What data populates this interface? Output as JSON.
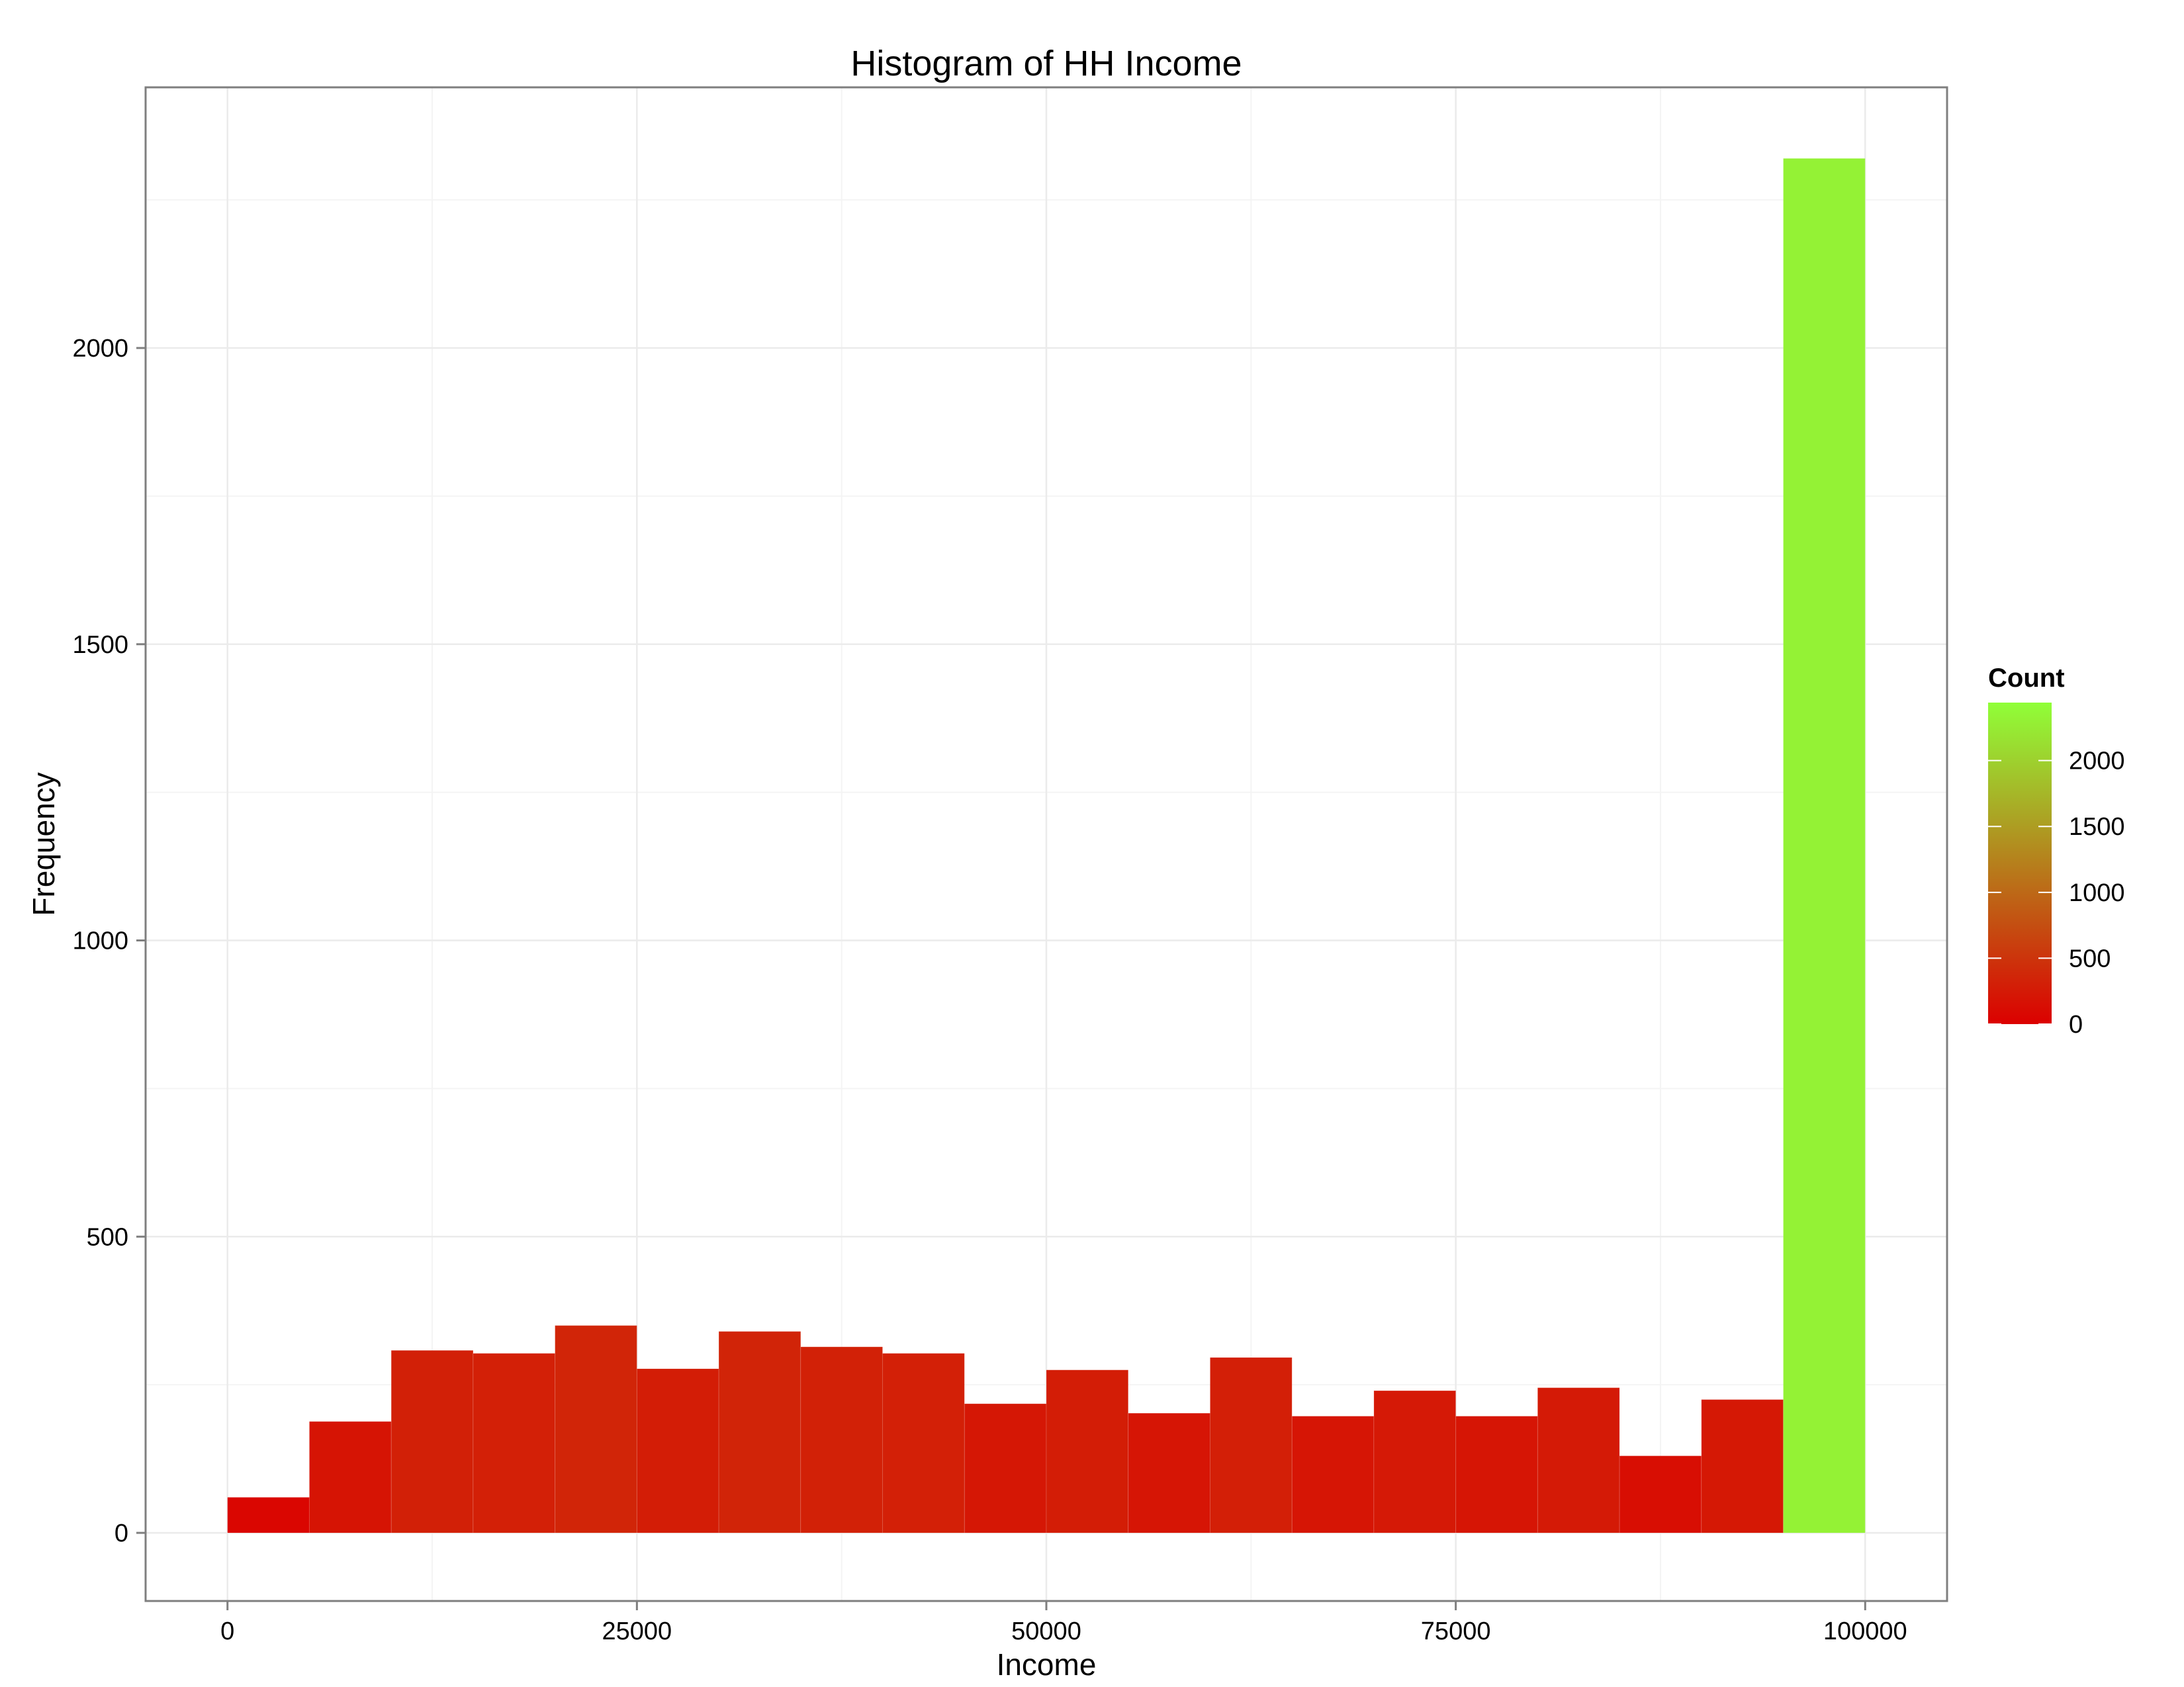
{
  "chart_data": {
    "type": "bar",
    "title": "Histogram of HH Income",
    "xlabel": "Income",
    "ylabel": "Frequency",
    "xlim": [
      -5000,
      105000
    ],
    "ylim": [
      -115,
      2440
    ],
    "x_ticks": [
      0,
      25000,
      50000,
      75000,
      100000
    ],
    "x_tick_labels": [
      "0",
      "25000",
      "50000",
      "75000",
      "100000"
    ],
    "y_ticks": [
      0,
      500,
      1000,
      1500,
      2000
    ],
    "y_tick_labels": [
      "0",
      "500",
      "1000",
      "1500",
      "2000"
    ],
    "grid": true,
    "bins": [
      {
        "start": 0,
        "end": 5000,
        "count": 60
      },
      {
        "start": 5000,
        "end": 10000,
        "count": 188
      },
      {
        "start": 10000,
        "end": 15000,
        "count": 308
      },
      {
        "start": 15000,
        "end": 20000,
        "count": 303
      },
      {
        "start": 20000,
        "end": 25000,
        "count": 350
      },
      {
        "start": 25000,
        "end": 30000,
        "count": 277
      },
      {
        "start": 30000,
        "end": 35000,
        "count": 340
      },
      {
        "start": 35000,
        "end": 40000,
        "count": 314
      },
      {
        "start": 40000,
        "end": 45000,
        "count": 303
      },
      {
        "start": 45000,
        "end": 50000,
        "count": 218
      },
      {
        "start": 50000,
        "end": 55000,
        "count": 275
      },
      {
        "start": 55000,
        "end": 60000,
        "count": 202
      },
      {
        "start": 60000,
        "end": 65000,
        "count": 296
      },
      {
        "start": 65000,
        "end": 70000,
        "count": 197
      },
      {
        "start": 70000,
        "end": 75000,
        "count": 240
      },
      {
        "start": 75000,
        "end": 80000,
        "count": 197
      },
      {
        "start": 80000,
        "end": 85000,
        "count": 245
      },
      {
        "start": 85000,
        "end": 90000,
        "count": 130
      },
      {
        "start": 90000,
        "end": 95000,
        "count": 225
      },
      {
        "start": 95000,
        "end": 100000,
        "count": 2320
      }
    ],
    "legend": {
      "title": "Count",
      "placement": "right",
      "ticks": [
        0,
        500,
        1000,
        1500,
        2000
      ],
      "tick_labels": [
        "0",
        "500",
        "1000",
        "1500",
        "2000"
      ],
      "range": [
        0,
        2440
      ],
      "low_color": "#dc0000",
      "high_color": "#90ff38"
    }
  }
}
